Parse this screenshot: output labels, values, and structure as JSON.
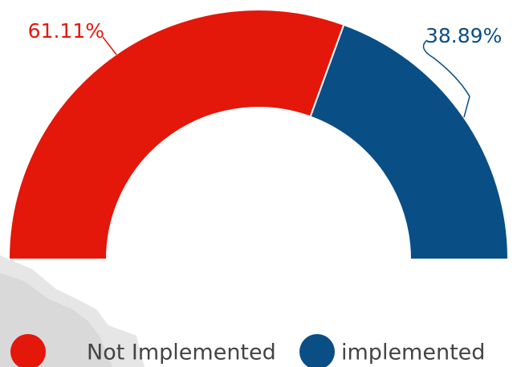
{
  "chart_data": {
    "type": "pie",
    "categories": [
      "Not Implemented",
      "implemented"
    ],
    "values": [
      61.11,
      38.89
    ],
    "value_labels": [
      "61.11%",
      "38.89%"
    ],
    "colors": [
      "#e4170b",
      "#0a4e86"
    ]
  }
}
